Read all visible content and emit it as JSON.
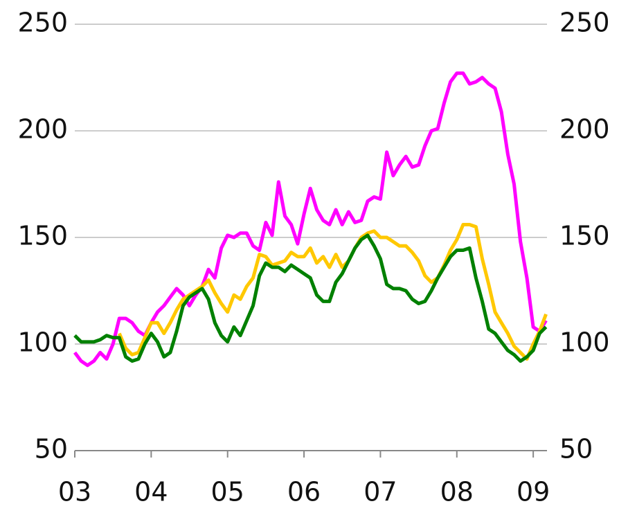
{
  "chart_data": {
    "type": "line",
    "x": [
      3,
      3.083,
      3.167,
      3.25,
      3.333,
      3.417,
      3.5,
      3.583,
      3.667,
      3.75,
      3.833,
      3.917,
      4,
      4.083,
      4.167,
      4.25,
      4.333,
      4.417,
      4.5,
      4.583,
      4.667,
      4.75,
      4.833,
      4.917,
      5,
      5.083,
      5.167,
      5.25,
      5.333,
      5.417,
      5.5,
      5.583,
      5.667,
      5.75,
      5.833,
      5.917,
      6,
      6.083,
      6.167,
      6.25,
      6.333,
      6.417,
      6.5,
      6.583,
      6.667,
      6.75,
      6.833,
      6.917,
      7,
      7.083,
      7.167,
      7.25,
      7.333,
      7.417,
      7.5,
      7.583,
      7.667,
      7.75,
      7.833,
      7.917,
      8,
      8.083,
      8.167,
      8.25,
      8.333,
      8.417,
      8.5,
      8.583,
      8.667,
      8.75,
      8.833,
      8.917,
      9,
      9.083,
      9.167
    ],
    "series": [
      {
        "color": "#ff00ff",
        "values": [
          96,
          92,
          90,
          92,
          96,
          93,
          100,
          112,
          112,
          110,
          106,
          104,
          110,
          115,
          118,
          122,
          126,
          123,
          118,
          123,
          127,
          135,
          131,
          145,
          151,
          150,
          152,
          152,
          146,
          144,
          157,
          151,
          176,
          160,
          156,
          147,
          161,
          173,
          163,
          158,
          156,
          163,
          156,
          162,
          157,
          158,
          167,
          169,
          168,
          190,
          179,
          184,
          188,
          183,
          184,
          193,
          200,
          201,
          213,
          223,
          227,
          227,
          222,
          223,
          225,
          222,
          220,
          209,
          189,
          175,
          148,
          131,
          108,
          106,
          111
        ]
      },
      {
        "color": "#ffc800",
        "values": [
          null,
          null,
          null,
          null,
          null,
          null,
          null,
          105,
          98,
          95,
          96,
          103,
          110,
          110,
          105,
          110,
          116,
          121,
          123,
          125,
          127,
          130,
          124,
          119,
          115,
          123,
          121,
          127,
          131,
          142,
          141,
          137,
          138,
          139,
          143,
          141,
          141,
          145,
          138,
          141,
          136,
          142,
          136,
          139,
          145,
          150,
          152,
          153,
          150,
          150,
          148,
          146,
          146,
          143,
          139,
          132,
          129,
          131,
          137,
          144,
          149,
          156,
          156,
          155,
          140,
          128,
          115,
          110,
          105,
          99,
          96,
          93,
          100,
          106,
          114
        ]
      },
      {
        "color": "#008000",
        "values": [
          104,
          101,
          101,
          101,
          102,
          104,
          103,
          103,
          94,
          92,
          93,
          100,
          105,
          101,
          94,
          96,
          106,
          118,
          122,
          124,
          126,
          121,
          110,
          104,
          101,
          108,
          104,
          111,
          118,
          132,
          138,
          136,
          136,
          134,
          137,
          135,
          133,
          131,
          123,
          120,
          120,
          129,
          133,
          139,
          145,
          149,
          151,
          146,
          140,
          128,
          126,
          126,
          125,
          121,
          119,
          120,
          125,
          131,
          136,
          141,
          144,
          144,
          145,
          131,
          120,
          107,
          105,
          101,
          97,
          95,
          92,
          94,
          97,
          105,
          108
        ]
      }
    ],
    "xlim": [
      3,
      9.18
    ],
    "xticks": [
      {
        "value": 3,
        "label": "03"
      },
      {
        "value": 4,
        "label": "04"
      },
      {
        "value": 5,
        "label": "05"
      },
      {
        "value": 6,
        "label": "06"
      },
      {
        "value": 7,
        "label": "07"
      },
      {
        "value": 8,
        "label": "08"
      },
      {
        "value": 9,
        "label": "09"
      }
    ],
    "ylim": [
      50,
      250
    ],
    "yticks": [
      50,
      100,
      150,
      200,
      250
    ],
    "y2lim": [
      50,
      250
    ],
    "y2ticks": [
      50,
      100,
      150,
      200,
      250
    ],
    "grid": true
  }
}
